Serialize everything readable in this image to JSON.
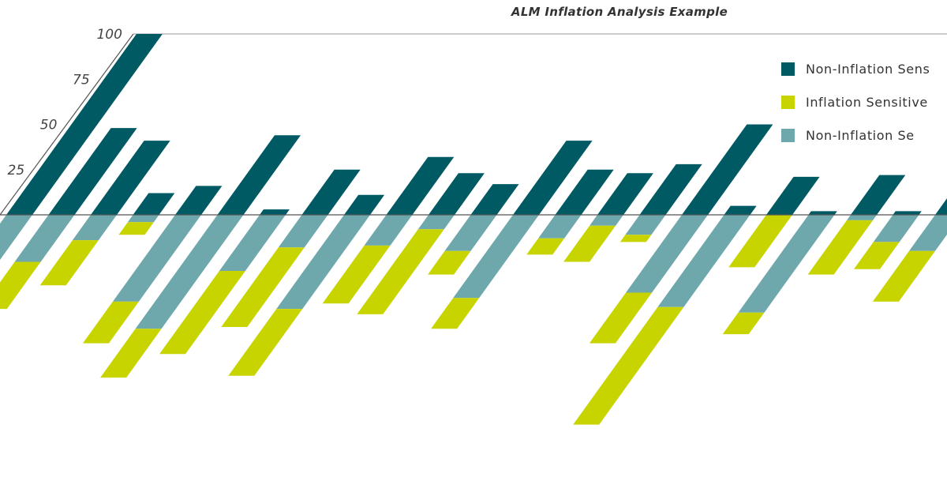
{
  "chart_data": {
    "type": "bar",
    "title": "ALM Inflation Analysis Example",
    "xlabel": "",
    "ylabel": "",
    "y_ticks": [
      25,
      50,
      75,
      100
    ],
    "ylim": [
      -135,
      100
    ],
    "stacked_below_zero": true,
    "grid": false,
    "legend_position": "top-right",
    "series": [
      {
        "name": "Non-Inflation Sens",
        "color": "#005a64",
        "values": [
          100,
          48,
          41,
          12,
          16,
          44,
          3,
          25,
          11,
          32,
          23,
          17,
          41,
          25,
          23,
          28,
          50,
          5,
          21,
          2,
          22,
          2,
          9
        ]
      },
      {
        "name": "Inflation Sensitive",
        "color": "#c8d400",
        "values": [
          -27,
          -26,
          -25,
          -7,
          -23,
          -27,
          -46,
          -44,
          -37,
          -32,
          -47,
          -13,
          -17,
          -9,
          -20,
          -4,
          -28,
          -65,
          -29,
          -12,
          -30,
          -15,
          -28
        ]
      },
      {
        "name": "Non-Inflation Se",
        "color": "#6ea8ad",
        "values": [
          -42,
          -26,
          -14,
          -4,
          -48,
          -63,
          -31,
          -18,
          -52,
          -17,
          -8,
          -20,
          -46,
          -13,
          -6,
          -11,
          -43,
          -51,
          0,
          -54,
          -3,
          -15,
          -20
        ]
      }
    ]
  }
}
